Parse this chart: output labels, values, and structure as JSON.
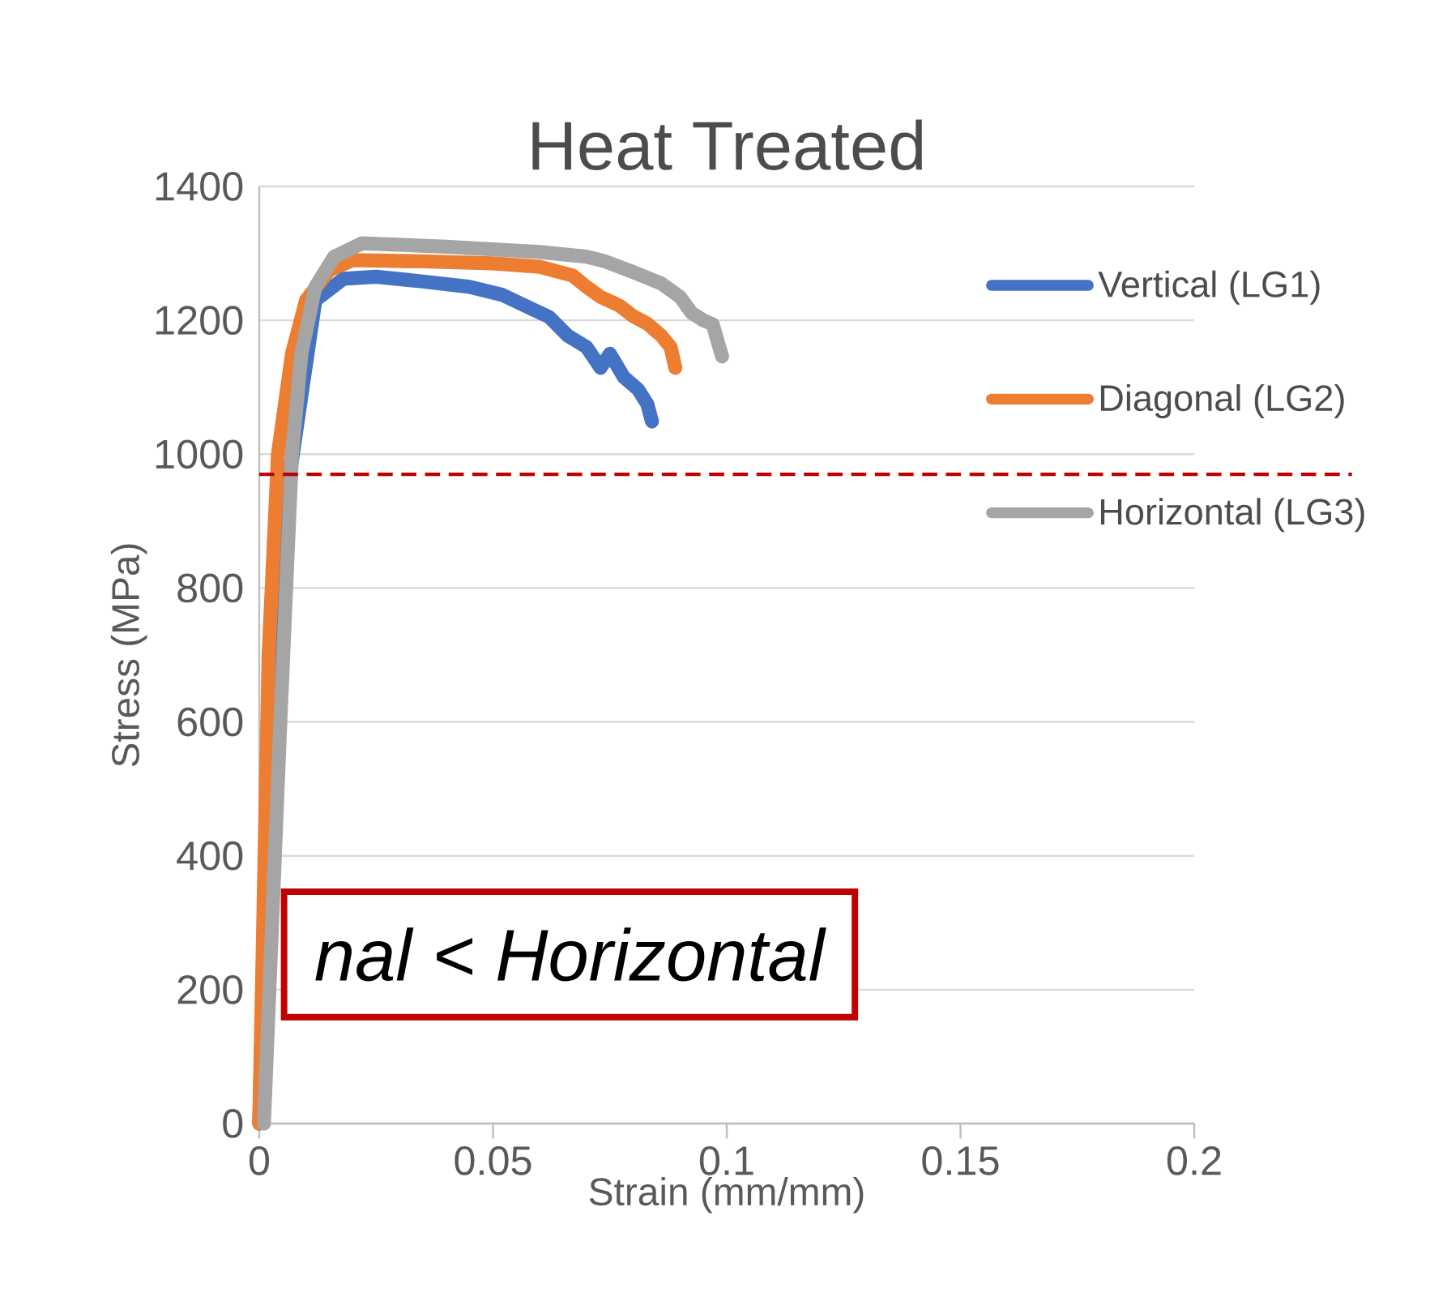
{
  "chart_data": {
    "type": "line",
    "title": "Heat Treated",
    "xlabel": "Strain (mm/mm)",
    "ylabel": "Stress (MPa)",
    "xlim": [
      0,
      0.2
    ],
    "ylim": [
      0,
      1400
    ],
    "xticks": [
      0,
      0.05,
      0.1,
      0.15,
      0.2
    ],
    "yticks": [
      0,
      200,
      400,
      600,
      800,
      1000,
      1200,
      1400
    ],
    "grid": "y",
    "legend": "right",
    "series": [
      {
        "name": "Vertical (LG1)",
        "color": "#4472c4",
        "x": [
          0,
          0.0015,
          0.003,
          0.005,
          0.008,
          0.012,
          0.018,
          0.025,
          0.035,
          0.045,
          0.052,
          0.058,
          0.062,
          0.066,
          0.07,
          0.073,
          0.075,
          0.078,
          0.081,
          0.083,
          0.084
        ],
        "values": [
          0,
          null,
          800,
          null,
          null,
          1230,
          1262,
          1265,
          1258,
          1250,
          1238,
          1218,
          1205,
          1177,
          1160,
          1129,
          1150,
          1115,
          1097,
          1075,
          1049
        ]
      },
      {
        "name": "Diagonal (LG2)",
        "color": "#ed7d31",
        "x": [
          0,
          0.001,
          0.002,
          0.004,
          0.007,
          0.01,
          0.015,
          0.02,
          0.035,
          0.05,
          0.06,
          0.067,
          0.07,
          0.073,
          0.077,
          0.08,
          0.083,
          0.086,
          0.088,
          0.089
        ],
        "values": [
          0,
          350,
          700,
          1000,
          1150,
          1230,
          1275,
          1290,
          1288,
          1285,
          1280,
          1267,
          1250,
          1235,
          1222,
          1206,
          1195,
          1177,
          1160,
          1129
        ]
      },
      {
        "name": "Horizontal (LG3)",
        "color": "#a5a5a5",
        "x": [
          0.001,
          0.0045,
          0.007,
          0.009,
          0.012,
          0.016,
          0.022,
          0.04,
          0.06,
          0.07,
          0.074,
          0.08,
          0.086,
          0.09,
          0.0925,
          0.095,
          0.097,
          0.099
        ],
        "values": [
          0,
          600,
          1000,
          1150,
          1250,
          1295,
          1315,
          1310,
          1302,
          1295,
          1288,
          1272,
          1255,
          1235,
          1211,
          1200,
          1194,
          1146
        ]
      }
    ],
    "ref_lines": [
      {
        "axis": "y",
        "value": 970,
        "color": "#c00000",
        "line_style": "dashed"
      }
    ],
    "annotations": [
      "nal < Horizontal"
    ]
  }
}
